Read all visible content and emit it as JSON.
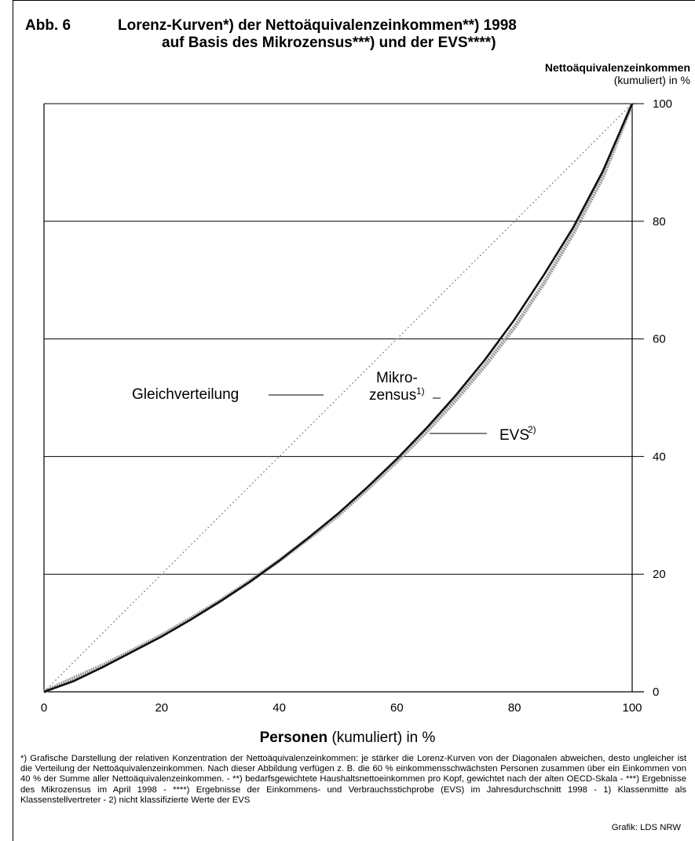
{
  "header": {
    "figure_label": "Abb. 6",
    "title_line1": "Lorenz-Kurven*) der Nettoäquivalenzeinkommen**) 1998",
    "title_line2": "auf Basis des Mikrozensus***) und der EVS****)"
  },
  "footnote": "*) Grafische Darstellung der relativen Konzentration der Nettoäquivalenzeinkommen: je stärker die Lorenz-Kurven von der Diagonalen abweichen, desto ungleicher ist die Verteilung der Nettoäquivalenzeinkommen. Nach dieser Abbildung verfügen z. B. die 60 % einkommensschwächsten Personen zusammen über ein Einkommen von 40 % der Summe aller Nettoäquivalenzeinkommen. - **) bedarfsgewichtete Haushaltsnettoeinkommen pro Kopf, gewichtet nach der alten OECD-Skala - ***) Ergebnisse des Mikrozensus im April 1998 - ****) Ergebnisse der Einkommens- und Verbrauchsstichprobe (EVS) im Jahresdurchschnitt 1998 - 1) Klassenmitte als Klassenstellvertreter - 2) nicht klassifizierte Werte der EVS",
  "credit": "Grafik: LDS NRW",
  "colors": {
    "mikrozensus": "#111111",
    "evs": "#9a9a9a",
    "diagonal": "#9a9a9a",
    "grid": "#000000"
  },
  "chart_data": {
    "type": "line",
    "xlabel_bold": "Personen",
    "xlabel_rest": " (kumuliert) in %",
    "ylabel_bold": "Nettoäquivalenzeinkommen",
    "ylabel_rest": "(kumuliert) in %",
    "xlim": [
      0,
      100
    ],
    "ylim": [
      0,
      100
    ],
    "x_ticks": [
      0,
      20,
      40,
      60,
      80,
      100
    ],
    "y_ticks": [
      0,
      20,
      40,
      60,
      80,
      100
    ],
    "grid": "horizontal",
    "series": [
      {
        "name": "Gleichverteilung",
        "label": "Gleichverteilung",
        "style": "dotted",
        "x": [
          0,
          100
        ],
        "y": [
          0,
          100
        ]
      },
      {
        "name": "Mikrozensus",
        "label_line1": "Mikro-",
        "label_line2": "zensus",
        "label_sup": "1)",
        "style": "solid-dark",
        "x": [
          0,
          5,
          10,
          15,
          20,
          25,
          30,
          35,
          40,
          45,
          50,
          55,
          60,
          65,
          70,
          75,
          80,
          85,
          90,
          95,
          100
        ],
        "y": [
          0,
          1.8,
          4.2,
          6.8,
          9.4,
          12.3,
          15.4,
          18.7,
          22.3,
          26.2,
          30.3,
          34.8,
          39.6,
          44.8,
          50.4,
          56.5,
          63.3,
          70.9,
          79.0,
          88.5,
          100
        ]
      },
      {
        "name": "EVS",
        "label": "EVS",
        "label_sup": "2)",
        "style": "solid-grey",
        "x": [
          0,
          5,
          10,
          15,
          20,
          25,
          30,
          35,
          40,
          45,
          50,
          55,
          60,
          65,
          70,
          75,
          80,
          85,
          90,
          95,
          100
        ],
        "y": [
          0,
          2.3,
          4.5,
          7.0,
          9.6,
          12.5,
          15.5,
          18.8,
          22.3,
          26.1,
          30.0,
          34.5,
          39.2,
          44.2,
          49.6,
          55.5,
          62.0,
          69.5,
          78.0,
          87.5,
          100
        ]
      }
    ]
  }
}
